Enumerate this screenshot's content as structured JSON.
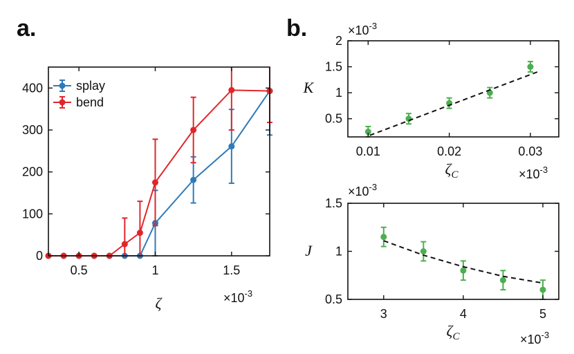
{
  "chart_data": [
    {
      "type": "line",
      "panel_label": "a.",
      "xlabel": "ζ",
      "ylabel": "",
      "x_multiplier": "×10",
      "x_multiplier_exp": "-3",
      "xlim": [
        0.3,
        1.75
      ],
      "ylim": [
        0,
        450
      ],
      "xticks": [
        0.5,
        1,
        1.5
      ],
      "xtick_labels": [
        "0.5",
        "1",
        "1.5"
      ],
      "yticks": [
        0,
        100,
        200,
        300,
        400
      ],
      "ytick_labels": [
        "0",
        "100",
        "200",
        "300",
        "400"
      ],
      "legend_position": "top-left",
      "series": [
        {
          "name": "splay",
          "color": "#2f7bb8",
          "x": [
            0.3,
            0.4,
            0.5,
            0.6,
            0.7,
            0.8,
            0.9,
            1.0,
            1.25,
            1.5,
            1.75
          ],
          "y": [
            0,
            0,
            0,
            0,
            0,
            0,
            0,
            78,
            181,
            261,
            393
          ],
          "err": [
            0,
            0,
            0,
            0,
            0,
            0,
            0,
            78,
            55,
            88,
            105
          ]
        },
        {
          "name": "bend",
          "color": "#e0262b",
          "x": [
            0.3,
            0.4,
            0.5,
            0.6,
            0.7,
            0.8,
            0.9,
            1.0,
            1.25,
            1.5,
            1.75
          ],
          "y": [
            0,
            0,
            0,
            0,
            0,
            28,
            55,
            175,
            300,
            395,
            393
          ],
          "err": [
            0,
            0,
            0,
            0,
            0,
            62,
            75,
            103,
            78,
            95,
            75
          ]
        }
      ]
    },
    {
      "type": "scatter",
      "panel_label": "b.",
      "xlabel": "ζ",
      "xlabel_sub": "C",
      "ylabel": "K",
      "x_multiplier": "×10",
      "x_multiplier_exp": "-3",
      "y_multiplier": "×10",
      "y_multiplier_exp": "-3",
      "xlim": [
        0.0075,
        0.0335
      ],
      "ylim": [
        0.15,
        2.0
      ],
      "xticks": [
        0.01,
        0.02,
        0.03
      ],
      "xtick_labels": [
        "0.01",
        "0.02",
        "0.03"
      ],
      "yticks": [
        0.5,
        1,
        1.5,
        2
      ],
      "ytick_labels": [
        "0.5",
        "1",
        "1.5",
        "2"
      ],
      "points": {
        "color": "#4caf50",
        "x": [
          0.01,
          0.015,
          0.02,
          0.025,
          0.03
        ],
        "y": [
          0.25,
          0.5,
          0.8,
          1.0,
          1.5
        ],
        "err": [
          0.1,
          0.1,
          0.1,
          0.1,
          0.1
        ]
      },
      "fit": {
        "style": "dashed",
        "x": [
          0.0102,
          0.0312
        ],
        "y": [
          0.18,
          1.42
        ]
      }
    },
    {
      "type": "scatter",
      "panel_label": "",
      "xlabel": "ζ",
      "xlabel_sub": "C",
      "ylabel": "J",
      "x_multiplier": "×10",
      "x_multiplier_exp": "-3",
      "y_multiplier": "×10",
      "y_multiplier_exp": "-3",
      "xlim": [
        2.55,
        5.2
      ],
      "ylim": [
        0.5,
        1.5
      ],
      "xticks": [
        3,
        4,
        5
      ],
      "xtick_labels": [
        "3",
        "4",
        "5"
      ],
      "yticks": [
        0.5,
        1,
        1.5
      ],
      "ytick_labels": [
        "0.5",
        "1",
        "1.5"
      ],
      "points": {
        "color": "#4caf50",
        "x": [
          3,
          3.5,
          4,
          4.5,
          5
        ],
        "y": [
          1.15,
          1.0,
          0.8,
          0.7,
          0.6
        ],
        "err": [
          0.1,
          0.1,
          0.1,
          0.1,
          0.1
        ]
      },
      "fit": {
        "style": "dashed",
        "x": [
          3.0,
          3.5,
          4.0,
          4.5,
          5.0
        ],
        "y": [
          1.11,
          0.96,
          0.84,
          0.74,
          0.67
        ]
      }
    }
  ]
}
